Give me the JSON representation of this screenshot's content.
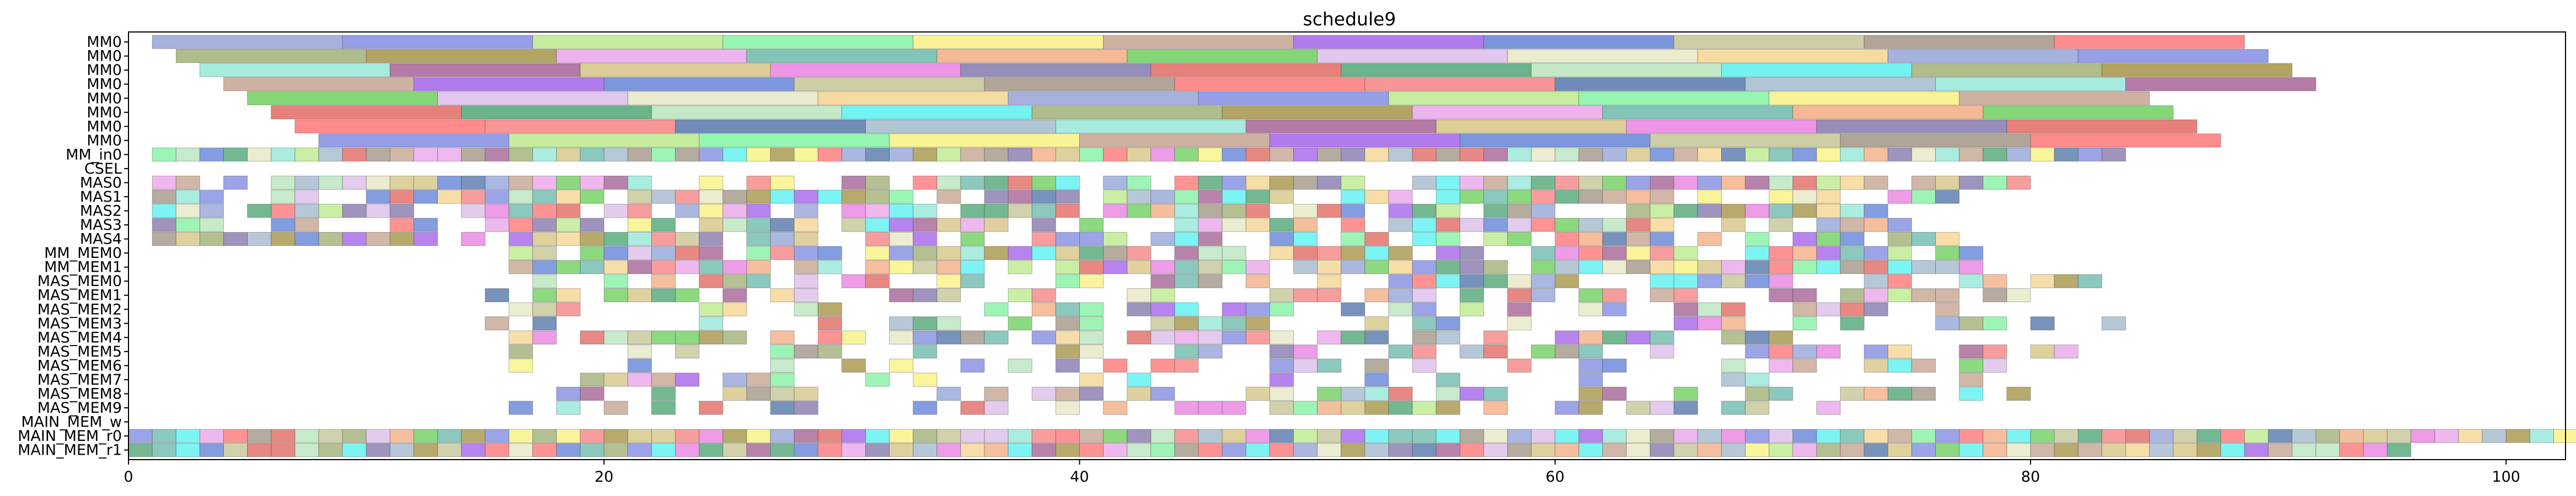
{
  "chart_data": {
    "type": "gantt",
    "title": "schedule9",
    "xlabel": "",
    "ylabel": "",
    "xlim": [
      0,
      102.5
    ],
    "x_ticks": [
      0,
      20,
      40,
      60,
      80,
      100
    ],
    "grid": false,
    "legend": "none",
    "rows": [
      "MM0",
      "MM0",
      "MM0",
      "MM0",
      "MM0",
      "MM0",
      "MM0",
      "MM0",
      "MM_in0",
      "CSEL",
      "MAS0",
      "MAS1",
      "MAS2",
      "MAS3",
      "MAS4",
      "MM_MEM0",
      "MM_MEM1",
      "MAS_MEM0",
      "MAS_MEM1",
      "MAS_MEM2",
      "MAS_MEM3",
      "MAS_MEM4",
      "MAS_MEM5",
      "MAS_MEM6",
      "MAS_MEM7",
      "MAS_MEM8",
      "MAS_MEM9",
      "MAIN_MEM_w",
      "MAIN_MEM_r0",
      "MAIN_MEM_r1"
    ],
    "palette": [
      "#8e9fd6",
      "#f47c7c",
      "#4ff0ef",
      "#7b86e0",
      "#4a6fa5",
      "#9bab6e",
      "#b8e986",
      "#9db6c9",
      "#a08d3c",
      "#7cf29c",
      "#8fe6d6",
      "#e8a0e8",
      "#f8f07a",
      "#a05a8f",
      "#64b5a8",
      "#c29f8a",
      "#d4c27e",
      "#f2a87c",
      "#9f5ae8",
      "#e87ae0",
      "#66cc55",
      "#5b7cd6",
      "#7d70a8",
      "#d9b9e8",
      "#c2c290",
      "#e0605a",
      "#e6e6c0",
      "#9c8f7d",
      "#46a06e",
      "#f4d28a",
      "#ff6f6f",
      "#b4e3b8"
    ],
    "mm_bars": [
      [
        [
          1,
          9
        ],
        [
          9,
          17
        ],
        [
          17,
          25
        ],
        [
          25,
          33
        ],
        [
          33,
          41
        ],
        [
          41,
          49
        ],
        [
          49,
          57
        ],
        [
          57,
          65
        ],
        [
          65,
          73
        ],
        [
          73,
          81
        ],
        [
          81,
          89
        ]
      ],
      [
        [
          2,
          10
        ],
        [
          10,
          18
        ],
        [
          18,
          26
        ],
        [
          26,
          34
        ],
        [
          34,
          42
        ],
        [
          42,
          50
        ],
        [
          50,
          58
        ],
        [
          58,
          66
        ],
        [
          66,
          74
        ],
        [
          74,
          82
        ],
        [
          82,
          90
        ]
      ],
      [
        [
          3,
          11
        ],
        [
          11,
          19
        ],
        [
          19,
          27
        ],
        [
          27,
          35
        ],
        [
          35,
          43
        ],
        [
          43,
          51
        ],
        [
          51,
          59
        ],
        [
          59,
          67
        ],
        [
          67,
          75
        ],
        [
          75,
          83
        ],
        [
          83,
          91
        ]
      ],
      [
        [
          4,
          12
        ],
        [
          12,
          20
        ],
        [
          20,
          28
        ],
        [
          28,
          36
        ],
        [
          36,
          44
        ],
        [
          44,
          52
        ],
        [
          52,
          60
        ],
        [
          60,
          68
        ],
        [
          68,
          76
        ],
        [
          76,
          84
        ],
        [
          84,
          92
        ]
      ],
      [
        [
          5,
          13
        ],
        [
          13,
          21
        ],
        [
          21,
          29
        ],
        [
          29,
          37
        ],
        [
          37,
          45
        ],
        [
          45,
          53
        ],
        [
          53,
          61
        ],
        [
          61,
          69
        ],
        [
          69,
          77
        ],
        [
          77,
          85
        ]
      ],
      [
        [
          6,
          14
        ],
        [
          14,
          22
        ],
        [
          22,
          30
        ],
        [
          30,
          38
        ],
        [
          38,
          46
        ],
        [
          46,
          54
        ],
        [
          54,
          62
        ],
        [
          62,
          70
        ],
        [
          70,
          78
        ],
        [
          78,
          86
        ]
      ],
      [
        [
          7,
          15
        ],
        [
          15,
          23
        ],
        [
          23,
          31
        ],
        [
          31,
          39
        ],
        [
          39,
          47
        ],
        [
          47,
          55
        ],
        [
          55,
          63
        ],
        [
          63,
          71
        ],
        [
          71,
          79
        ],
        [
          79,
          87
        ]
      ],
      [
        [
          8,
          16
        ],
        [
          16,
          24
        ],
        [
          24,
          32
        ],
        [
          32,
          40
        ],
        [
          40,
          48
        ],
        [
          48,
          56
        ],
        [
          56,
          64
        ],
        [
          64,
          72
        ],
        [
          72,
          80
        ],
        [
          80,
          88
        ]
      ]
    ],
    "small_rows": [
      {
        "row": 8,
        "start": 1,
        "end": 84,
        "density": 1.0
      },
      {
        "row": 10,
        "start": 1,
        "end": 80,
        "density": 0.82
      },
      {
        "row": 11,
        "start": 1,
        "end": 78,
        "density": 0.8
      },
      {
        "row": 12,
        "start": 1,
        "end": 75,
        "density": 0.75
      },
      {
        "row": 13,
        "start": 1,
        "end": 76,
        "density": 0.75
      },
      {
        "row": 14,
        "start": 1,
        "end": 79,
        "density": 0.7
      },
      {
        "row": 15,
        "start": 16,
        "end": 78,
        "density": 0.85
      },
      {
        "row": 16,
        "start": 16,
        "end": 78,
        "density": 0.85
      },
      {
        "row": 17,
        "start": 16,
        "end": 84,
        "density": 0.55
      },
      {
        "row": 18,
        "start": 15,
        "end": 80,
        "density": 0.55
      },
      {
        "row": 19,
        "start": 15,
        "end": 82,
        "density": 0.5
      },
      {
        "row": 20,
        "start": 15,
        "end": 84,
        "density": 0.5
      },
      {
        "row": 21,
        "start": 16,
        "end": 72,
        "density": 0.5
      },
      {
        "row": 22,
        "start": 16,
        "end": 82,
        "density": 0.45
      },
      {
        "row": 23,
        "start": 16,
        "end": 80,
        "density": 0.45
      },
      {
        "row": 24,
        "start": 16,
        "end": 78,
        "density": 0.45
      },
      {
        "row": 25,
        "start": 16,
        "end": 80,
        "density": 0.45
      },
      {
        "row": 26,
        "start": 16,
        "end": 73,
        "density": 0.5
      },
      {
        "row": 28,
        "start": 0,
        "end": 102.5,
        "density": 1.0
      },
      {
        "row": 29,
        "start": 0,
        "end": 96,
        "density": 1.0
      }
    ],
    "cell_width": 1
  }
}
